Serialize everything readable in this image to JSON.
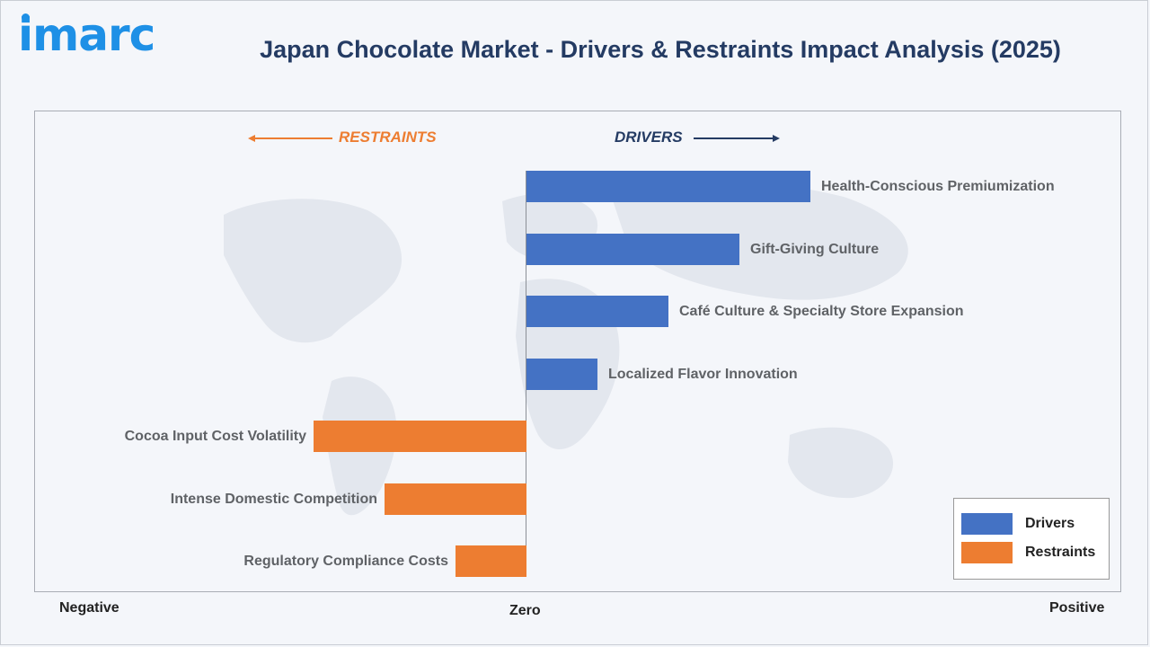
{
  "logo": "imarc",
  "title": "Japan Chocolate Market - Drivers & Restraints Impact Analysis (2025)",
  "colors": {
    "drivers": "#4472c4",
    "restraints": "#ed7d31",
    "title": "#243b63",
    "logo": "#1e90e6"
  },
  "chart_data": {
    "type": "bar",
    "orientation": "horizontal",
    "direction_labels": {
      "left": "RESTRAINTS",
      "right": "DRIVERS"
    },
    "axis_labels": {
      "negative": "Negative",
      "zero": "Zero",
      "positive": "Positive"
    },
    "categories": [
      "Health-Conscious Premiumization",
      "Gift-Giving Culture",
      "Café Culture & Specialty Store Expansion",
      "Localized Flavor Innovation",
      "Cocoa Input Cost Volatility",
      "Intense Domestic Competition",
      "Regulatory Compliance Costs"
    ],
    "series": [
      {
        "name": "Drivers",
        "values": [
          4,
          3,
          2,
          1,
          null,
          null,
          null
        ]
      },
      {
        "name": "Restraints",
        "values": [
          null,
          null,
          null,
          null,
          -3,
          -2,
          -1
        ]
      }
    ],
    "xlim": [
      -7,
      7
    ],
    "grid": false,
    "legend_position": "bottom-right"
  }
}
